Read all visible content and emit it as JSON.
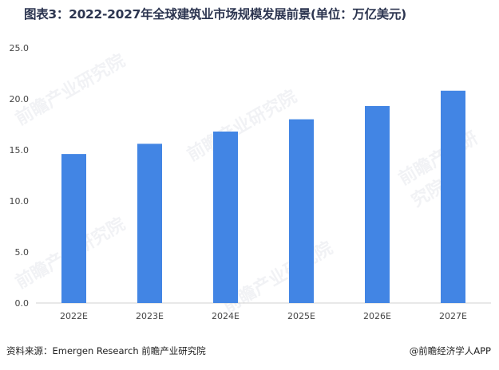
{
  "title": "图表3：2022-2027年全球建筑业市场规模发展前景(单位：万亿美元)",
  "footer": {
    "source": "资料来源：Emergen Research 前瞻产业研究院",
    "brand": "@前瞻经济学人APP"
  },
  "watermark_text": "前瞻产业研究院",
  "colors": {
    "bar": "#4285e4",
    "axis": "#d0d0d0",
    "tick": "#444444"
  },
  "chart_data": {
    "type": "bar",
    "title": "图表3：2022-2027年全球建筑业市场规模发展前景(单位：万亿美元)",
    "categories": [
      "2022E",
      "2023E",
      "2024E",
      "2025E",
      "2026E",
      "2027E"
    ],
    "values": [
      14.6,
      15.6,
      16.8,
      18.0,
      19.3,
      20.8
    ],
    "ylim": [
      0,
      25
    ],
    "yticks": [
      "0.0",
      "5.0",
      "10.0",
      "15.0",
      "20.0",
      "25.0"
    ],
    "grid": false,
    "xlabel": "",
    "ylabel": ""
  }
}
